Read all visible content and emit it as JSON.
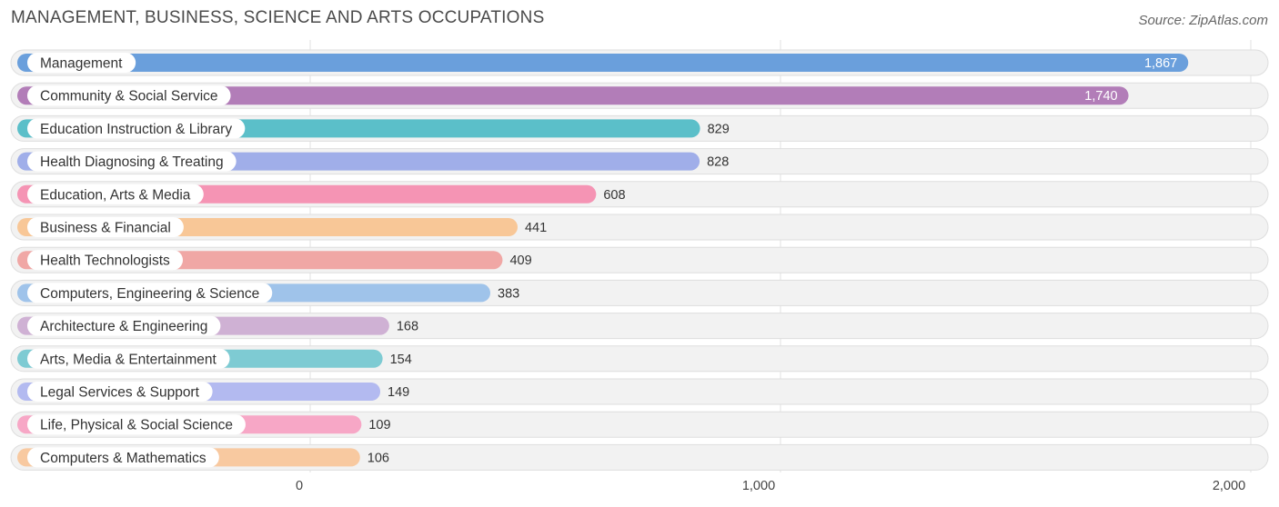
{
  "title": "MANAGEMENT, BUSINESS, SCIENCE AND ARTS OCCUPATIONS",
  "source": "Source: ZipAtlas.com",
  "chart_data": {
    "type": "bar",
    "orientation": "horizontal",
    "title": "MANAGEMENT, BUSINESS, SCIENCE AND ARTS OCCUPATIONS",
    "xlabel": "",
    "ylabel": "",
    "xlim": [
      0,
      2000
    ],
    "ticks": [
      0,
      1000,
      2000
    ],
    "tick_labels": [
      "0",
      "1,000",
      "2,000"
    ],
    "grid": true,
    "legend": "none",
    "categories": [
      "Management",
      "Community & Social Service",
      "Education Instruction & Library",
      "Health Diagnosing & Treating",
      "Education, Arts & Media",
      "Business & Financial",
      "Health Technologists",
      "Computers, Engineering & Science",
      "Architecture & Engineering",
      "Arts, Media & Entertainment",
      "Legal Services & Support",
      "Life, Physical & Social Science",
      "Computers & Mathematics"
    ],
    "values": [
      1867,
      1740,
      829,
      828,
      608,
      441,
      409,
      383,
      168,
      154,
      149,
      109,
      106
    ],
    "value_labels": [
      "1,867",
      "1,740",
      "829",
      "828",
      "608",
      "441",
      "409",
      "383",
      "168",
      "154",
      "149",
      "109",
      "106"
    ],
    "colors": [
      "#6a9fdc",
      "#b27db8",
      "#5bbfc9",
      "#a0aee9",
      "#f594b4",
      "#f8c797",
      "#f0a7a5",
      "#9fc3ea",
      "#cfb1d4",
      "#7ecbd3",
      "#b3baf0",
      "#f7a7c6",
      "#f8c9a0"
    ]
  }
}
